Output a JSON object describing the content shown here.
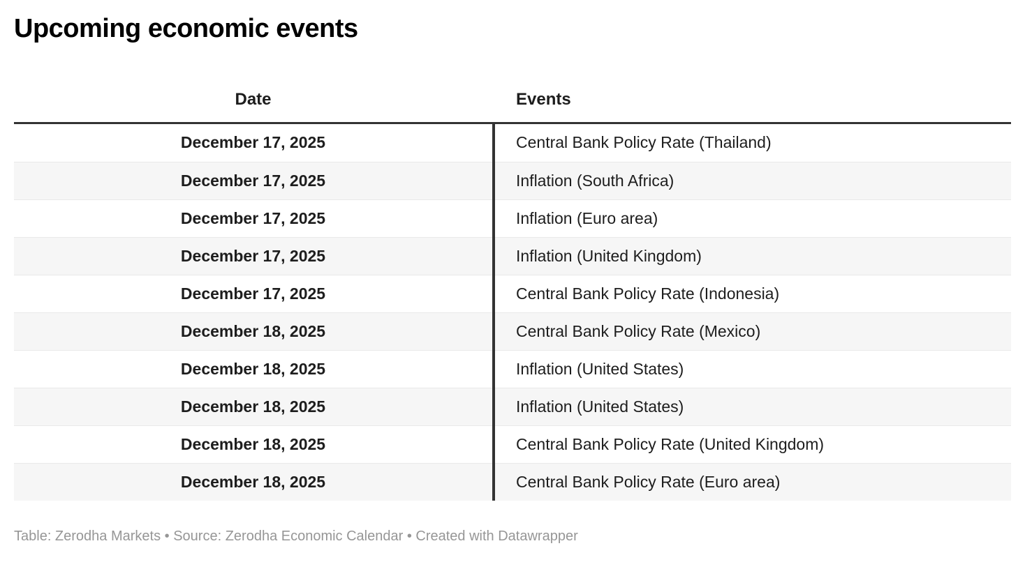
{
  "title": "Upcoming economic events",
  "chart_data": {
    "type": "table",
    "title": "Upcoming economic events",
    "columns": [
      "Date",
      "Events"
    ],
    "rows": [
      {
        "date": "December 17, 2025",
        "event": "Central Bank Policy Rate (Thailand)"
      },
      {
        "date": "December 17, 2025",
        "event": "Inflation (South Africa)"
      },
      {
        "date": "December 17, 2025",
        "event": "Inflation (Euro area)"
      },
      {
        "date": "December 17, 2025",
        "event": "Inflation (United Kingdom)"
      },
      {
        "date": "December 17, 2025",
        "event": "Central Bank Policy Rate (Indonesia)"
      },
      {
        "date": "December 18, 2025",
        "event": "Central Bank Policy Rate (Mexico)"
      },
      {
        "date": "December 18, 2025",
        "event": "Inflation (United States)"
      },
      {
        "date": "December 18, 2025",
        "event": "Inflation (United States)"
      },
      {
        "date": "December 18, 2025",
        "event": "Central Bank Policy Rate (United Kingdom)"
      },
      {
        "date": "December 18, 2025",
        "event": "Central Bank Policy Rate (Euro area)"
      }
    ],
    "layout_hints": {
      "date_column_align": "center",
      "events_column_align": "left",
      "striped_rows": true
    }
  },
  "footer": {
    "attribution": "Table: Zerodha Markets • Source: Zerodha Economic Calendar • Created with Datawrapper"
  },
  "colors": {
    "rule": "#333333",
    "separator": "#e9e9e9",
    "alt_row_bg": "#f6f6f6",
    "text": "#1d1d1d",
    "title_text": "#000000",
    "footer_text": "#969696",
    "background": "#ffffff"
  }
}
